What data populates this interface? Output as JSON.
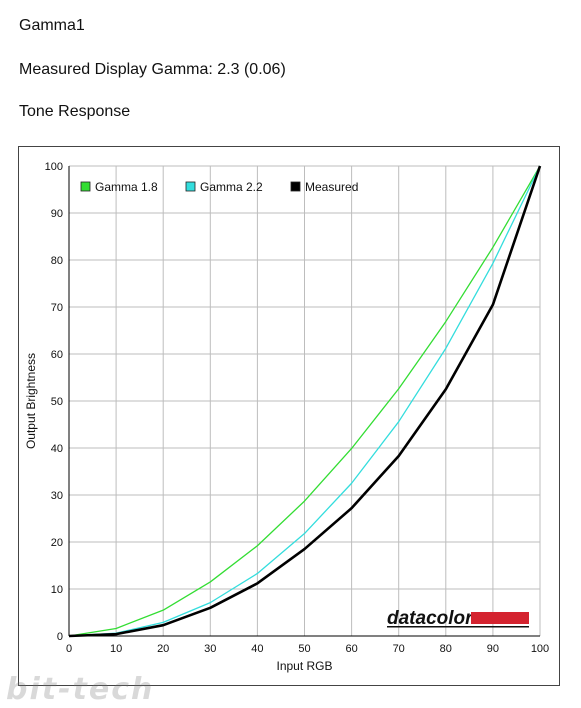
{
  "header": {
    "title": "Gamma1",
    "measured": "Measured Display Gamma: 2.3 (0.06)",
    "section": "Tone Response"
  },
  "watermark": "bit-tech",
  "logo": {
    "text": "datacolor",
    "bar_color": "#d4232f"
  },
  "chart_data": {
    "type": "line",
    "xlabel": "Input RGB",
    "ylabel": "Output Brightness",
    "xlim": [
      0,
      100
    ],
    "ylim": [
      0,
      100
    ],
    "xticks": [
      0,
      10,
      20,
      30,
      40,
      50,
      60,
      70,
      80,
      90,
      100
    ],
    "yticks": [
      0,
      10,
      20,
      30,
      40,
      50,
      60,
      70,
      80,
      90,
      100
    ],
    "grid": true,
    "legend_position": "top-left",
    "x": [
      0,
      10,
      20,
      30,
      40,
      50,
      60,
      70,
      80,
      90,
      100
    ],
    "series": [
      {
        "name": "Gamma 1.8",
        "color": "#33dd33",
        "values": [
          0,
          1.6,
          5.5,
          11.5,
          19.2,
          28.7,
          39.9,
          52.6,
          66.9,
          82.7,
          100
        ]
      },
      {
        "name": "Gamma 2.2",
        "color": "#33dddd",
        "values": [
          0,
          0.6,
          2.9,
          7.1,
          13.3,
          21.8,
          32.5,
          45.6,
          61.2,
          79.3,
          100
        ]
      },
      {
        "name": "Measured",
        "color": "#000000",
        "values": [
          0,
          0.4,
          2.3,
          6.0,
          11.2,
          18.5,
          27.2,
          38.3,
          52.5,
          70.5,
          100
        ]
      }
    ]
  }
}
